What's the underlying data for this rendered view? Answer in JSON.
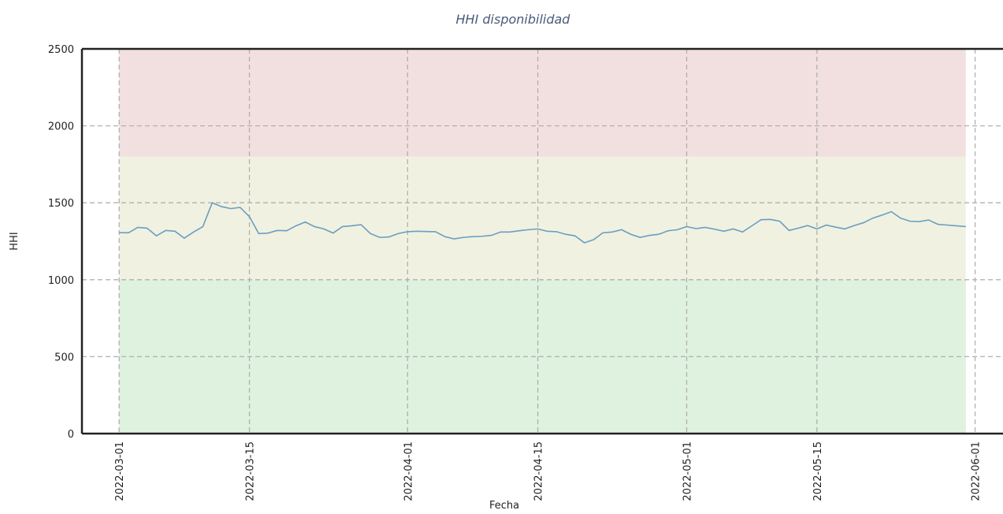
{
  "chart_data": {
    "type": "line",
    "title": "HHI disponibilidad",
    "xlabel": "Fecha",
    "ylabel": "HHI",
    "x": [
      "2022-03-01",
      "2022-03-02",
      "2022-03-03",
      "2022-03-04",
      "2022-03-05",
      "2022-03-06",
      "2022-03-07",
      "2022-03-08",
      "2022-03-09",
      "2022-03-10",
      "2022-03-11",
      "2022-03-12",
      "2022-03-13",
      "2022-03-14",
      "2022-03-15",
      "2022-03-16",
      "2022-03-17",
      "2022-03-18",
      "2022-03-19",
      "2022-03-20",
      "2022-03-21",
      "2022-03-22",
      "2022-03-23",
      "2022-03-24",
      "2022-03-25",
      "2022-03-26",
      "2022-03-27",
      "2022-03-28",
      "2022-03-29",
      "2022-03-30",
      "2022-03-31",
      "2022-04-01",
      "2022-04-02",
      "2022-04-03",
      "2022-04-04",
      "2022-04-05",
      "2022-04-06",
      "2022-04-07",
      "2022-04-08",
      "2022-04-09",
      "2022-04-10",
      "2022-04-11",
      "2022-04-12",
      "2022-04-13",
      "2022-04-14",
      "2022-04-15",
      "2022-04-16",
      "2022-04-17",
      "2022-04-18",
      "2022-04-19",
      "2022-04-20",
      "2022-04-21",
      "2022-04-22",
      "2022-04-23",
      "2022-04-24",
      "2022-04-25",
      "2022-04-26",
      "2022-04-27",
      "2022-04-28",
      "2022-04-29",
      "2022-04-30",
      "2022-05-01",
      "2022-05-02",
      "2022-05-03",
      "2022-05-04",
      "2022-05-05",
      "2022-05-06",
      "2022-05-07",
      "2022-05-08",
      "2022-05-09",
      "2022-05-10",
      "2022-05-11",
      "2022-05-12",
      "2022-05-13",
      "2022-05-14",
      "2022-05-15",
      "2022-05-16",
      "2022-05-17",
      "2022-05-18",
      "2022-05-19",
      "2022-05-20",
      "2022-05-21",
      "2022-05-22",
      "2022-05-23",
      "2022-05-24",
      "2022-05-25",
      "2022-05-26",
      "2022-05-27",
      "2022-05-28",
      "2022-05-29",
      "2022-05-30",
      "2022-05-31"
    ],
    "series": [
      {
        "name": "HHI",
        "color": "#6a9fc0",
        "values": [
          1306,
          1305,
          1340,
          1335,
          1285,
          1320,
          1315,
          1270,
          1310,
          1345,
          1500,
          1475,
          1462,
          1470,
          1410,
          1300,
          1303,
          1320,
          1318,
          1350,
          1375,
          1345,
          1330,
          1303,
          1345,
          1350,
          1358,
          1300,
          1275,
          1278,
          1300,
          1312,
          1315,
          1313,
          1312,
          1280,
          1265,
          1275,
          1280,
          1282,
          1288,
          1310,
          1310,
          1318,
          1325,
          1330,
          1315,
          1312,
          1295,
          1285,
          1240,
          1260,
          1305,
          1310,
          1325,
          1295,
          1275,
          1288,
          1295,
          1318,
          1325,
          1345,
          1332,
          1340,
          1328,
          1315,
          1330,
          1310,
          1350,
          1390,
          1392,
          1380,
          1320,
          1335,
          1352,
          1330,
          1355,
          1342,
          1330,
          1352,
          1370,
          1400,
          1420,
          1442,
          1400,
          1380,
          1378,
          1388,
          1360,
          1355,
          1350,
          1345
        ]
      }
    ],
    "bands": [
      {
        "from": 0,
        "to": 1000,
        "color": "#dff1df"
      },
      {
        "from": 1000,
        "to": 1800,
        "color": "#f1f1e1"
      },
      {
        "from": 1800,
        "to": 2500,
        "color": "#f2dfe0"
      }
    ],
    "xlim": [
      "2022-02-25",
      "2022-06-04"
    ],
    "xticks": [
      "2022-03-01",
      "2022-03-15",
      "2022-04-01",
      "2022-04-15",
      "2022-05-01",
      "2022-05-15",
      "2022-06-01"
    ],
    "ylim": [
      0,
      2500
    ],
    "yticks": [
      0,
      500,
      1000,
      1500,
      2000,
      2500
    ],
    "grid": true
  }
}
